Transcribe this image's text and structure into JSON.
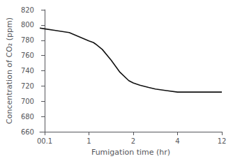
{
  "chart_data": {
    "type": "line",
    "x": [
      0.0,
      0.1,
      0.3,
      0.6,
      1.0,
      1.1,
      1.15,
      1.3,
      1.5,
      1.7,
      1.9,
      2.0,
      2.3,
      2.7,
      3.0,
      3.5,
      4.0,
      5.0,
      6.0,
      7.0,
      8.0,
      9.0,
      10.0,
      11.0,
      12.0
    ],
    "values": [
      796,
      795,
      793,
      790,
      779,
      777,
      775,
      768,
      754,
      738,
      727,
      724,
      721,
      718,
      716,
      714,
      712,
      712,
      712,
      712,
      712,
      712,
      712,
      712,
      712
    ],
    "xlabel": "Fumigation time (hr)",
    "ylabel": "Concentration of CO₂ (ppm)",
    "xlim": [
      0,
      12
    ],
    "ylim": [
      660,
      820
    ],
    "xticks": [
      {
        "value": 0.1,
        "label": "00.1"
      },
      1,
      2,
      4,
      12
    ],
    "yticks": [
      660,
      680,
      700,
      720,
      740,
      760,
      780,
      800,
      820
    ],
    "color": "#111111",
    "grid": false
  }
}
